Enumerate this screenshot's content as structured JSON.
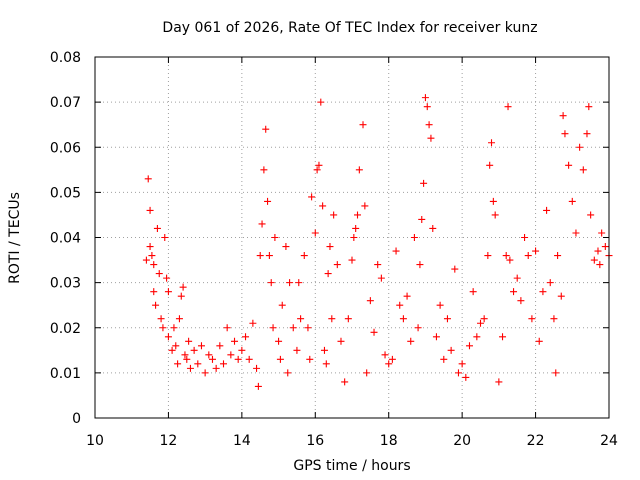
{
  "chart_data": {
    "type": "scatter",
    "title": "Day 061 of 2026, Rate Of TEC Index for receiver kunz",
    "xlabel": "GPS time / hours",
    "ylabel": "ROTI / TECUs",
    "xlim": [
      10,
      24
    ],
    "ylim": [
      0,
      0.08
    ],
    "x_ticks": [
      10,
      12,
      14,
      16,
      18,
      20,
      22,
      24
    ],
    "y_ticks": [
      0,
      0.01,
      0.02,
      0.03,
      0.04,
      0.05,
      0.06,
      0.07,
      0.08
    ],
    "x_tick_labels": [
      "10",
      "12",
      "14",
      "16",
      "18",
      "20",
      "22",
      "24"
    ],
    "y_tick_labels": [
      "0",
      "0.01",
      "0.02",
      "0.03",
      "0.04",
      "0.05",
      "0.06",
      "0.07",
      "0.08"
    ],
    "grid": true,
    "marker": "plus",
    "color": "#ff0000",
    "points": [
      [
        11.4,
        0.035
      ],
      [
        11.45,
        0.053
      ],
      [
        11.5,
        0.046
      ],
      [
        11.5,
        0.038
      ],
      [
        11.55,
        0.036
      ],
      [
        11.6,
        0.034
      ],
      [
        11.6,
        0.028
      ],
      [
        11.65,
        0.025
      ],
      [
        11.7,
        0.042
      ],
      [
        11.75,
        0.032
      ],
      [
        11.8,
        0.022
      ],
      [
        11.85,
        0.02
      ],
      [
        11.9,
        0.04
      ],
      [
        11.95,
        0.031
      ],
      [
        12.0,
        0.028
      ],
      [
        12.0,
        0.018
      ],
      [
        12.1,
        0.015
      ],
      [
        12.15,
        0.02
      ],
      [
        12.2,
        0.016
      ],
      [
        12.25,
        0.012
      ],
      [
        12.3,
        0.022
      ],
      [
        12.35,
        0.027
      ],
      [
        12.4,
        0.029
      ],
      [
        12.45,
        0.014
      ],
      [
        12.5,
        0.013
      ],
      [
        12.55,
        0.017
      ],
      [
        12.6,
        0.011
      ],
      [
        12.7,
        0.015
      ],
      [
        12.8,
        0.012
      ],
      [
        12.9,
        0.016
      ],
      [
        13.0,
        0.01
      ],
      [
        13.1,
        0.014
      ],
      [
        13.2,
        0.013
      ],
      [
        13.3,
        0.011
      ],
      [
        13.4,
        0.016
      ],
      [
        13.5,
        0.012
      ],
      [
        13.6,
        0.02
      ],
      [
        13.7,
        0.014
      ],
      [
        13.8,
        0.017
      ],
      [
        13.9,
        0.013
      ],
      [
        14.0,
        0.015
      ],
      [
        14.1,
        0.018
      ],
      [
        14.2,
        0.013
      ],
      [
        14.3,
        0.021
      ],
      [
        14.4,
        0.011
      ],
      [
        14.45,
        0.007
      ],
      [
        14.5,
        0.036
      ],
      [
        14.55,
        0.043
      ],
      [
        14.6,
        0.055
      ],
      [
        14.65,
        0.064
      ],
      [
        14.7,
        0.048
      ],
      [
        14.75,
        0.036
      ],
      [
        14.8,
        0.03
      ],
      [
        14.85,
        0.02
      ],
      [
        14.9,
        0.04
      ],
      [
        15.0,
        0.017
      ],
      [
        15.05,
        0.013
      ],
      [
        15.1,
        0.025
      ],
      [
        15.2,
        0.038
      ],
      [
        15.25,
        0.01
      ],
      [
        15.3,
        0.03
      ],
      [
        15.4,
        0.02
      ],
      [
        15.5,
        0.015
      ],
      [
        15.55,
        0.03
      ],
      [
        15.6,
        0.022
      ],
      [
        15.7,
        0.036
      ],
      [
        15.8,
        0.02
      ],
      [
        15.85,
        0.013
      ],
      [
        15.9,
        0.049
      ],
      [
        16.0,
        0.041
      ],
      [
        16.05,
        0.055
      ],
      [
        16.1,
        0.056
      ],
      [
        16.15,
        0.07
      ],
      [
        16.2,
        0.047
      ],
      [
        16.25,
        0.015
      ],
      [
        16.3,
        0.012
      ],
      [
        16.35,
        0.032
      ],
      [
        16.4,
        0.038
      ],
      [
        16.45,
        0.022
      ],
      [
        16.5,
        0.045
      ],
      [
        16.6,
        0.034
      ],
      [
        16.7,
        0.017
      ],
      [
        16.8,
        0.008
      ],
      [
        16.9,
        0.022
      ],
      [
        17.0,
        0.035
      ],
      [
        17.05,
        0.04
      ],
      [
        17.1,
        0.042
      ],
      [
        17.15,
        0.045
      ],
      [
        17.2,
        0.055
      ],
      [
        17.3,
        0.065
      ],
      [
        17.35,
        0.047
      ],
      [
        17.4,
        0.01
      ],
      [
        17.5,
        0.026
      ],
      [
        17.6,
        0.019
      ],
      [
        17.7,
        0.034
      ],
      [
        17.8,
        0.031
      ],
      [
        17.9,
        0.014
      ],
      [
        18.0,
        0.012
      ],
      [
        18.1,
        0.013
      ],
      [
        18.2,
        0.037
      ],
      [
        18.3,
        0.025
      ],
      [
        18.4,
        0.022
      ],
      [
        18.5,
        0.027
      ],
      [
        18.6,
        0.017
      ],
      [
        18.7,
        0.04
      ],
      [
        18.8,
        0.02
      ],
      [
        18.85,
        0.034
      ],
      [
        18.9,
        0.044
      ],
      [
        18.95,
        0.052
      ],
      [
        19.0,
        0.071
      ],
      [
        19.05,
        0.069
      ],
      [
        19.1,
        0.065
      ],
      [
        19.15,
        0.062
      ],
      [
        19.2,
        0.042
      ],
      [
        19.3,
        0.018
      ],
      [
        19.4,
        0.025
      ],
      [
        19.5,
        0.013
      ],
      [
        19.6,
        0.022
      ],
      [
        19.7,
        0.015
      ],
      [
        19.8,
        0.033
      ],
      [
        19.9,
        0.01
      ],
      [
        20.0,
        0.012
      ],
      [
        20.1,
        0.009
      ],
      [
        20.2,
        0.016
      ],
      [
        20.3,
        0.028
      ],
      [
        20.4,
        0.018
      ],
      [
        20.5,
        0.021
      ],
      [
        20.6,
        0.022
      ],
      [
        20.7,
        0.036
      ],
      [
        20.75,
        0.056
      ],
      [
        20.8,
        0.061
      ],
      [
        20.85,
        0.048
      ],
      [
        20.9,
        0.045
      ],
      [
        21.0,
        0.008
      ],
      [
        21.1,
        0.018
      ],
      [
        21.2,
        0.036
      ],
      [
        21.25,
        0.069
      ],
      [
        21.3,
        0.035
      ],
      [
        21.4,
        0.028
      ],
      [
        21.5,
        0.031
      ],
      [
        21.6,
        0.026
      ],
      [
        21.7,
        0.04
      ],
      [
        21.8,
        0.036
      ],
      [
        21.9,
        0.022
      ],
      [
        22.0,
        0.037
      ],
      [
        22.1,
        0.017
      ],
      [
        22.2,
        0.028
      ],
      [
        22.3,
        0.046
      ],
      [
        22.4,
        0.03
      ],
      [
        22.5,
        0.022
      ],
      [
        22.55,
        0.01
      ],
      [
        22.6,
        0.036
      ],
      [
        22.7,
        0.027
      ],
      [
        22.75,
        0.067
      ],
      [
        22.8,
        0.063
      ],
      [
        22.9,
        0.056
      ],
      [
        23.0,
        0.048
      ],
      [
        23.1,
        0.041
      ],
      [
        23.2,
        0.06
      ],
      [
        23.3,
        0.055
      ],
      [
        23.4,
        0.063
      ],
      [
        23.45,
        0.069
      ],
      [
        23.5,
        0.045
      ],
      [
        23.6,
        0.035
      ],
      [
        23.7,
        0.037
      ],
      [
        23.75,
        0.034
      ],
      [
        23.8,
        0.041
      ],
      [
        23.9,
        0.038
      ],
      [
        24.0,
        0.036
      ]
    ]
  }
}
